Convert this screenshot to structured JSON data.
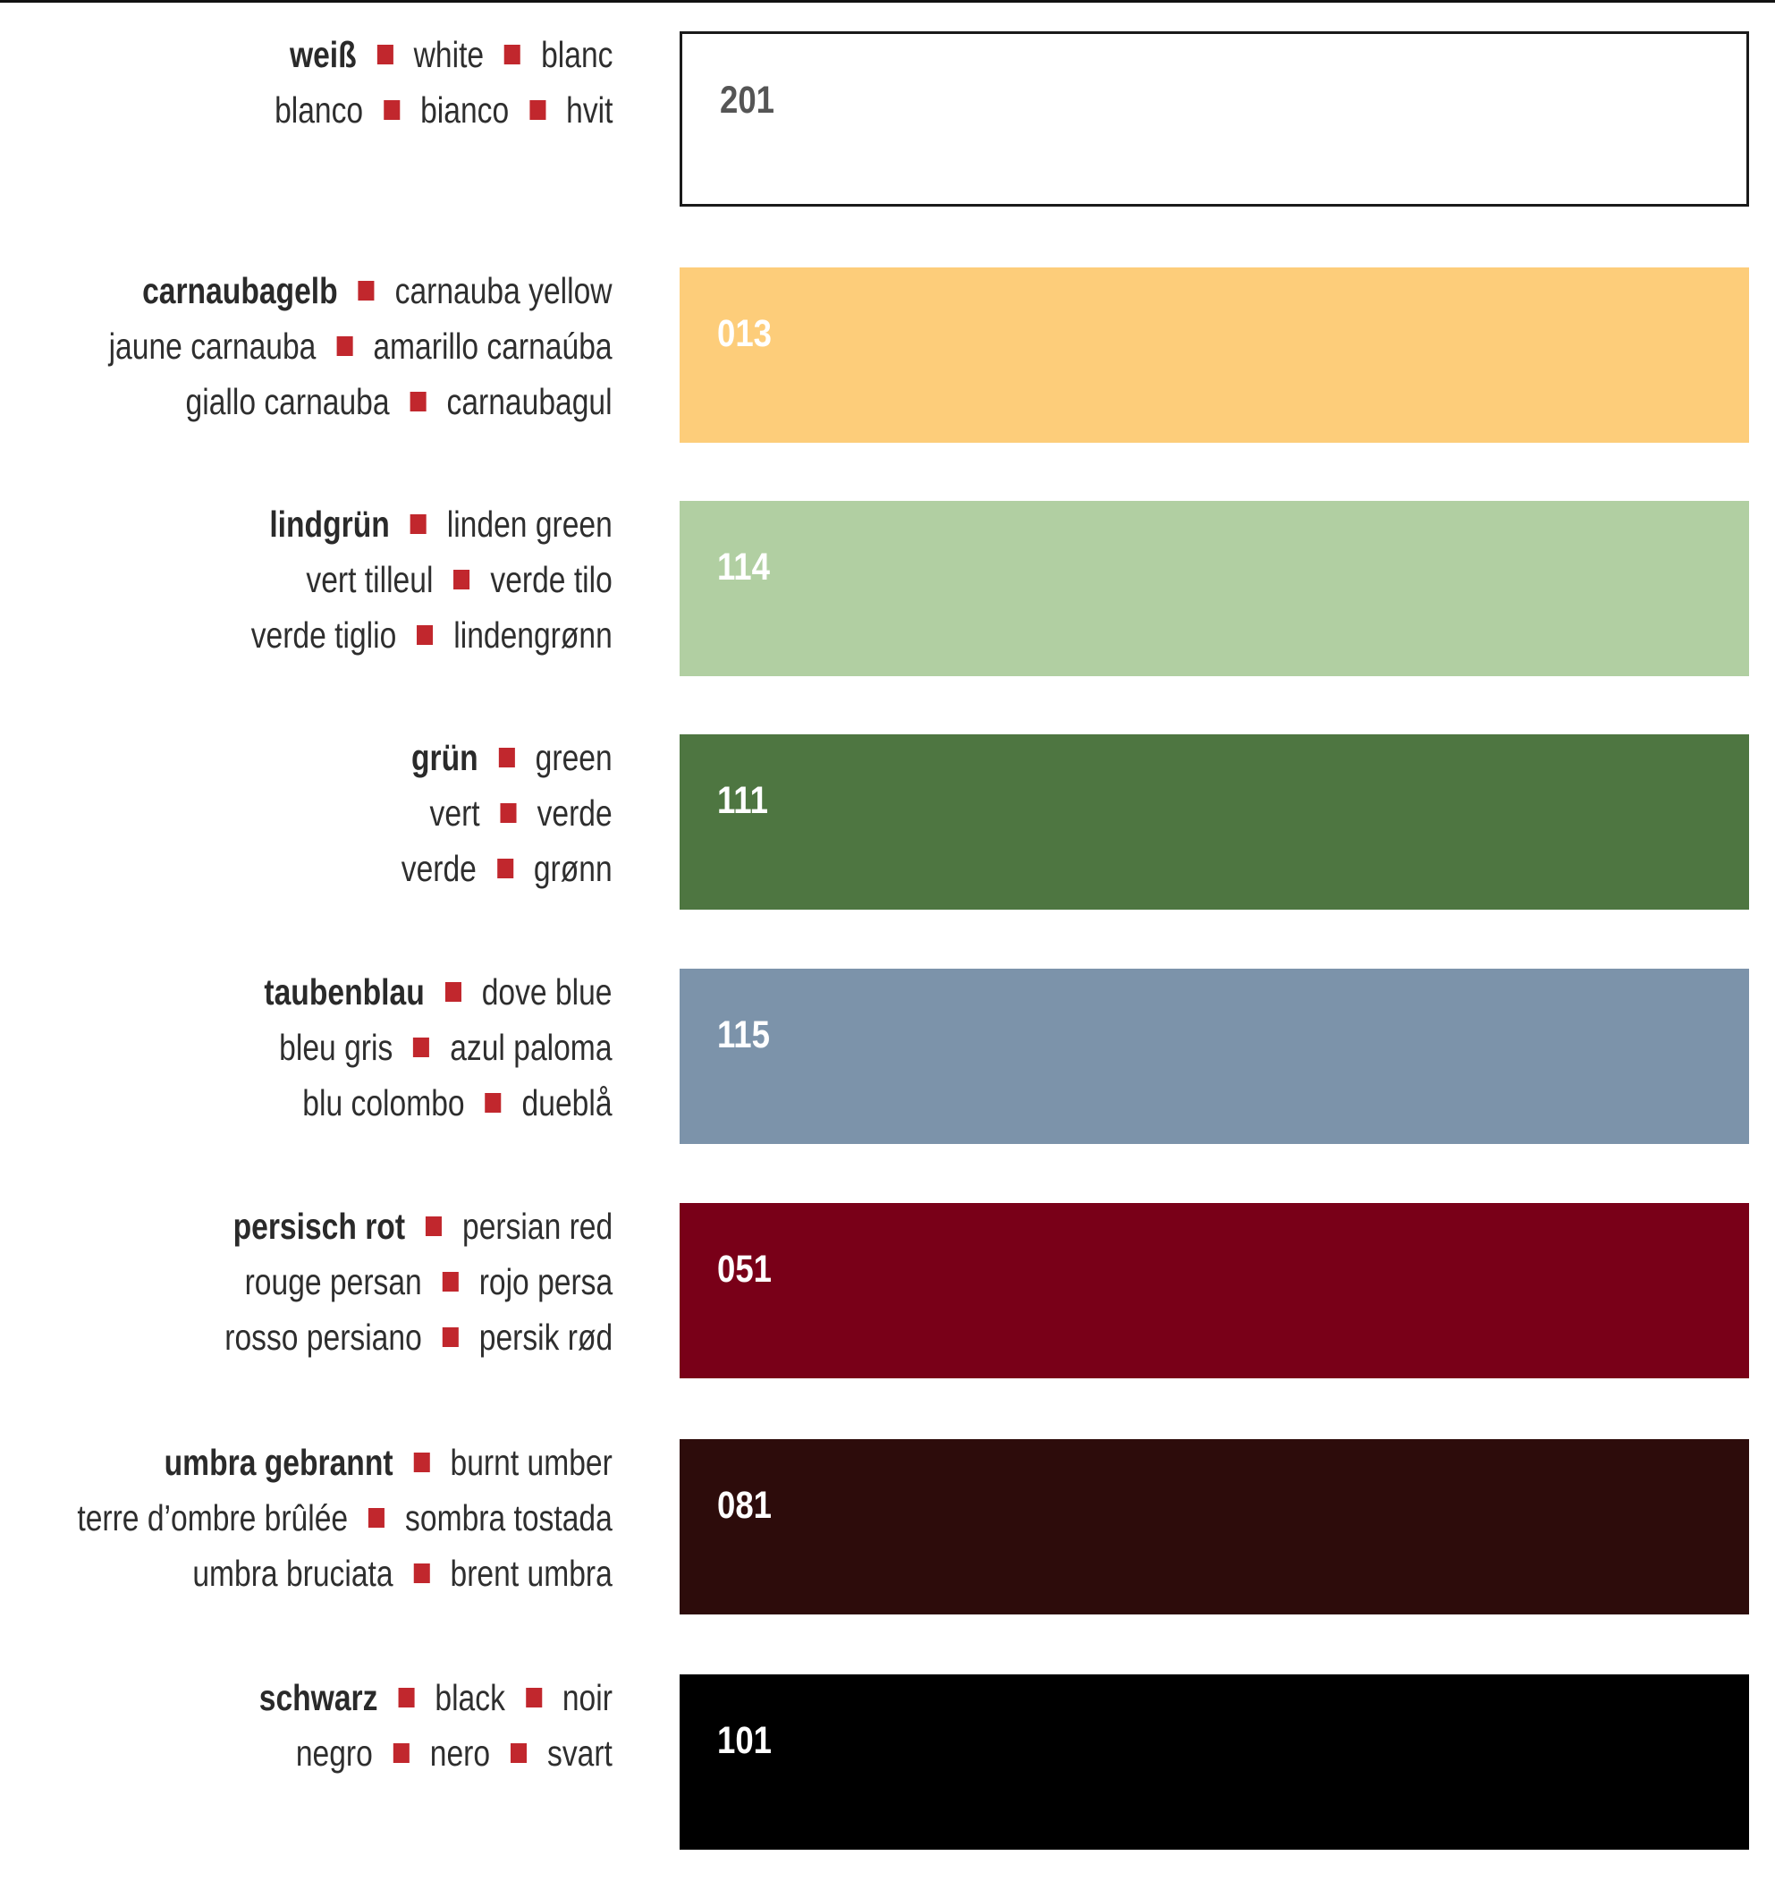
{
  "colors": [
    {
      "code": "201",
      "swatch_color": "#ffffff",
      "code_color": "#555555",
      "outlined": true,
      "lines": [
        {
          "bold": "weiß",
          "terms": [
            "white",
            "blanc"
          ]
        },
        {
          "bold": "",
          "terms": [
            "blanco",
            "bianco",
            "hvit"
          ]
        }
      ]
    },
    {
      "code": "013",
      "swatch_color": "#fdcd7a",
      "code_color": "#ffffff",
      "outlined": false,
      "lines": [
        {
          "bold": "carnaubagelb",
          "terms": [
            "carnauba yellow"
          ]
        },
        {
          "bold": "",
          "terms": [
            "jaune carnauba",
            "amarillo carnaúba"
          ]
        },
        {
          "bold": "",
          "terms": [
            "giallo carnauba",
            "carnaubagul"
          ]
        }
      ]
    },
    {
      "code": "114",
      "swatch_color": "#b1cfa2",
      "code_color": "#ffffff",
      "outlined": false,
      "lines": [
        {
          "bold": "lindgrün",
          "terms": [
            "linden green"
          ]
        },
        {
          "bold": "",
          "terms": [
            "vert tilleul",
            "verde tilo"
          ]
        },
        {
          "bold": "",
          "terms": [
            "verde tiglio",
            "lindengrønn"
          ]
        }
      ]
    },
    {
      "code": "111",
      "swatch_color": "#4e7641",
      "code_color": "#ffffff",
      "outlined": false,
      "lines": [
        {
          "bold": "grün",
          "terms": [
            "green"
          ]
        },
        {
          "bold": "",
          "terms": [
            "vert",
            "verde"
          ]
        },
        {
          "bold": "",
          "terms": [
            "verde",
            "grønn"
          ]
        }
      ]
    },
    {
      "code": "115",
      "swatch_color": "#7c93aa",
      "code_color": "#ffffff",
      "outlined": false,
      "lines": [
        {
          "bold": "taubenblau",
          "terms": [
            "dove blue"
          ]
        },
        {
          "bold": "",
          "terms": [
            "bleu gris",
            "azul paloma"
          ]
        },
        {
          "bold": "",
          "terms": [
            "blu colombo",
            "dueblå"
          ]
        }
      ]
    },
    {
      "code": "051",
      "swatch_color": "#790018",
      "code_color": "#ffffff",
      "outlined": false,
      "lines": [
        {
          "bold": "persisch rot",
          "terms": [
            "persian red"
          ]
        },
        {
          "bold": "",
          "terms": [
            "rouge persan",
            "rojo persa"
          ]
        },
        {
          "bold": "",
          "terms": [
            "rosso persiano",
            "persik rød"
          ]
        }
      ]
    },
    {
      "code": "081",
      "swatch_color": "#2d0c0b",
      "code_color": "#ffffff",
      "outlined": false,
      "lines": [
        {
          "bold": "umbra gebrannt",
          "terms": [
            "burnt umber"
          ]
        },
        {
          "bold": "",
          "terms": [
            "terre d’ombre brûlée",
            "sombra tostada"
          ]
        },
        {
          "bold": "",
          "terms": [
            "umbra bruciata",
            "brent umbra"
          ]
        }
      ]
    },
    {
      "code": "101",
      "swatch_color": "#000000",
      "code_color": "#ffffff",
      "outlined": false,
      "lines": [
        {
          "bold": "schwarz",
          "terms": [
            "black",
            "noir"
          ]
        },
        {
          "bold": "",
          "terms": [
            "negro",
            "nero",
            "svart"
          ]
        }
      ]
    }
  ]
}
